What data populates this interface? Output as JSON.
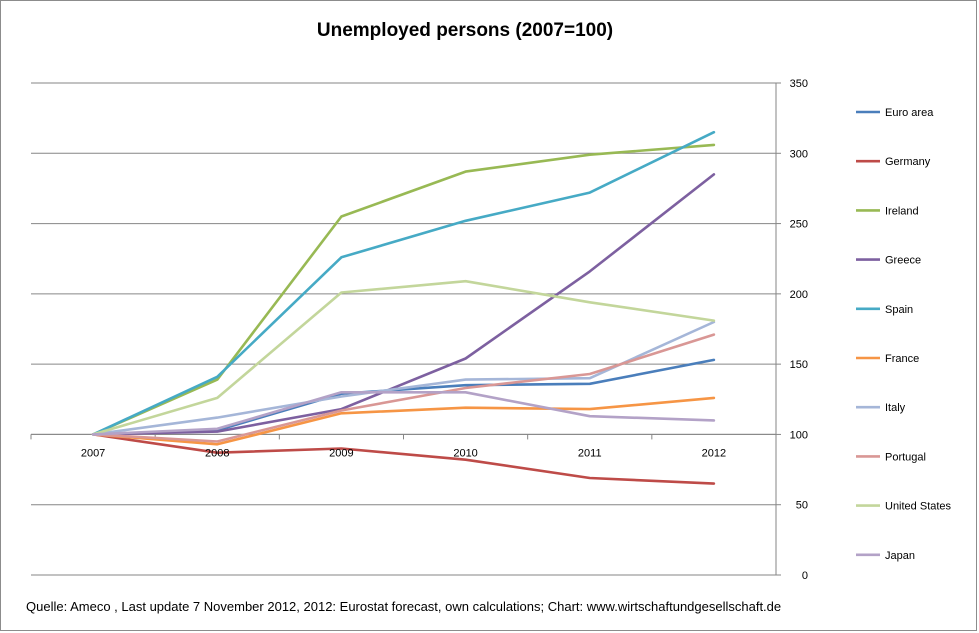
{
  "chart_data": {
    "type": "line",
    "title": "Unemployed persons  (2007=100)",
    "x": [
      "2007",
      "2008",
      "2009",
      "2010",
      "2011",
      "2012"
    ],
    "y_axis": {
      "position": "right",
      "ylim": [
        0,
        350
      ],
      "ticks": [
        0,
        50,
        100,
        150,
        200,
        250,
        300,
        350
      ]
    },
    "x_axis_crosses_at": 100,
    "grid": "horizontal",
    "legend_position": "right",
    "series": [
      {
        "name": "Euro area",
        "color": "#4a7ebb",
        "values": [
          100,
          103,
          129,
          135,
          136,
          153
        ]
      },
      {
        "name": "Germany",
        "color": "#be4b48",
        "values": [
          100,
          87,
          90,
          82,
          69,
          65
        ]
      },
      {
        "name": "Ireland",
        "color": "#98b954",
        "values": [
          100,
          139,
          255,
          287,
          299,
          306
        ]
      },
      {
        "name": "Greece",
        "color": "#7d60a0",
        "values": [
          100,
          102,
          118,
          154,
          216,
          285
        ]
      },
      {
        "name": "Spain",
        "color": "#46aac5",
        "values": [
          100,
          141,
          226,
          252,
          272,
          315
        ]
      },
      {
        "name": "France",
        "color": "#f69545",
        "values": [
          100,
          93,
          115,
          119,
          118,
          126
        ]
      },
      {
        "name": "Italy",
        "color": "#a5b6d8",
        "values": [
          100,
          112,
          127,
          139,
          140,
          180
        ]
      },
      {
        "name": "Portugal",
        "color": "#d99795",
        "values": [
          100,
          95,
          117,
          133,
          143,
          171
        ]
      },
      {
        "name": "United States",
        "color": "#c3d69b",
        "values": [
          100,
          126,
          201,
          209,
          194,
          181
        ]
      },
      {
        "name": "Japan",
        "color": "#b3a2c7",
        "values": [
          100,
          104,
          130,
          130,
          113,
          110
        ]
      }
    ],
    "source": "Quelle: Ameco , Last update 7 November 2012, 2012:  Eurostat forecast, own calculations; Chart: www.wirtschaftundgesellschaft.de"
  }
}
